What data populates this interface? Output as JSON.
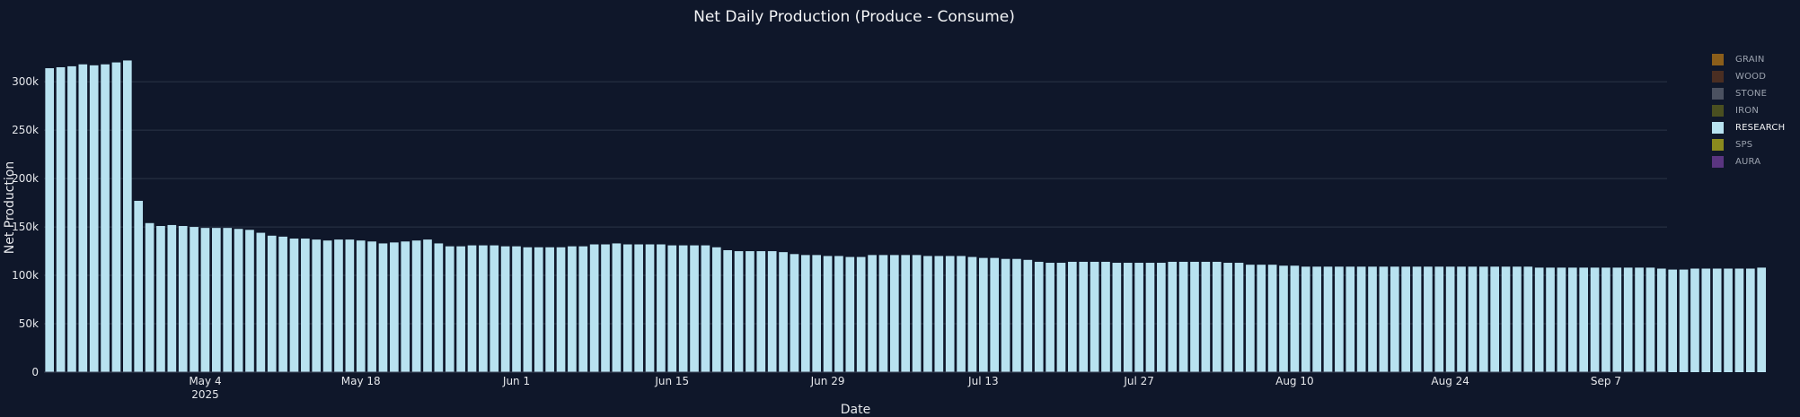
{
  "chart_data": {
    "type": "bar",
    "title": "Net Daily Production (Produce - Consume)",
    "xlabel": "Date",
    "ylabel": "Net Production",
    "ylim": [
      0,
      340000
    ],
    "yticks": [
      0,
      50000,
      100000,
      150000,
      200000,
      250000,
      300000
    ],
    "ytick_labels": [
      "0",
      "50k",
      "100k",
      "150k",
      "200k",
      "250k",
      "300k"
    ],
    "x_start": "2025-04-20",
    "x_end": "2025-09-12",
    "xticks": [
      {
        "date": "2025-05-04",
        "label": "May 4",
        "sublabel": "2025"
      },
      {
        "date": "2025-05-18",
        "label": "May 18",
        "sublabel": ""
      },
      {
        "date": "2025-06-01",
        "label": "Jun 1",
        "sublabel": ""
      },
      {
        "date": "2025-06-15",
        "label": "Jun 15",
        "sublabel": ""
      },
      {
        "date": "2025-06-29",
        "label": "Jun 29",
        "sublabel": ""
      },
      {
        "date": "2025-07-13",
        "label": "Jul 13",
        "sublabel": ""
      },
      {
        "date": "2025-07-27",
        "label": "Jul 27",
        "sublabel": ""
      },
      {
        "date": "2025-08-10",
        "label": "Aug 10",
        "sublabel": ""
      },
      {
        "date": "2025-08-24",
        "label": "Aug 24",
        "sublabel": ""
      },
      {
        "date": "2025-09-07",
        "label": "Sep 7",
        "sublabel": ""
      }
    ],
    "grid": true,
    "legend_position": "right",
    "series": [
      {
        "name": "GRAIN",
        "color": "#8b5e1a",
        "visible": false,
        "values": []
      },
      {
        "name": "WOOD",
        "color": "#4a2e22",
        "visible": false,
        "values": []
      },
      {
        "name": "STONE",
        "color": "#4b5160",
        "visible": false,
        "values": []
      },
      {
        "name": "IRON",
        "color": "#4a4f20",
        "visible": false,
        "values": []
      },
      {
        "name": "RESEARCH",
        "color": "#b8e2f0",
        "visible": true,
        "values": [
          314000,
          315000,
          316000,
          318000,
          317000,
          318000,
          320000,
          322000,
          177000,
          154000,
          151000,
          152000,
          151000,
          150000,
          149000,
          149000,
          149000,
          148000,
          147000,
          144000,
          141000,
          140000,
          138000,
          138000,
          137000,
          136000,
          137000,
          137000,
          136000,
          135000,
          133000,
          134000,
          135000,
          136000,
          137000,
          133000,
          130000,
          130000,
          131000,
          131000,
          131000,
          130000,
          130000,
          129000,
          129000,
          129000,
          129000,
          130000,
          130000,
          132000,
          132000,
          133000,
          132000,
          132000,
          132000,
          132000,
          131000,
          131000,
          131000,
          131000,
          129000,
          126000,
          125000,
          125000,
          125000,
          125000,
          124000,
          122000,
          121000,
          121000,
          120000,
          120000,
          119000,
          119000,
          121000,
          121000,
          121000,
          121000,
          121000,
          120000,
          120000,
          120000,
          120000,
          119000,
          118000,
          118000,
          117000,
          117000,
          116000,
          114000,
          113000,
          113000,
          114000,
          114000,
          114000,
          114000,
          113000,
          113000,
          113000,
          113000,
          113000,
          114000,
          114000,
          114000,
          114000,
          114000,
          113000,
          113000,
          111000,
          111000,
          111000,
          110000,
          110000,
          109000,
          109000,
          109000,
          109000,
          109000,
          109000,
          109000,
          109000,
          109000,
          109000,
          109000,
          109000,
          109000,
          109000,
          109000,
          109000,
          109000,
          109000,
          109000,
          109000,
          109000,
          108000,
          108000,
          108000,
          108000,
          108000,
          108000,
          108000,
          108000,
          108000,
          108000,
          108000,
          107000,
          106000,
          106000,
          107000,
          107000,
          107000,
          107000,
          107000,
          107000,
          108000
        ]
      },
      {
        "name": "SPS",
        "color": "#8a8a1e",
        "visible": false,
        "values": []
      },
      {
        "name": "AURA",
        "color": "#5a3580",
        "visible": false,
        "values": []
      }
    ]
  }
}
